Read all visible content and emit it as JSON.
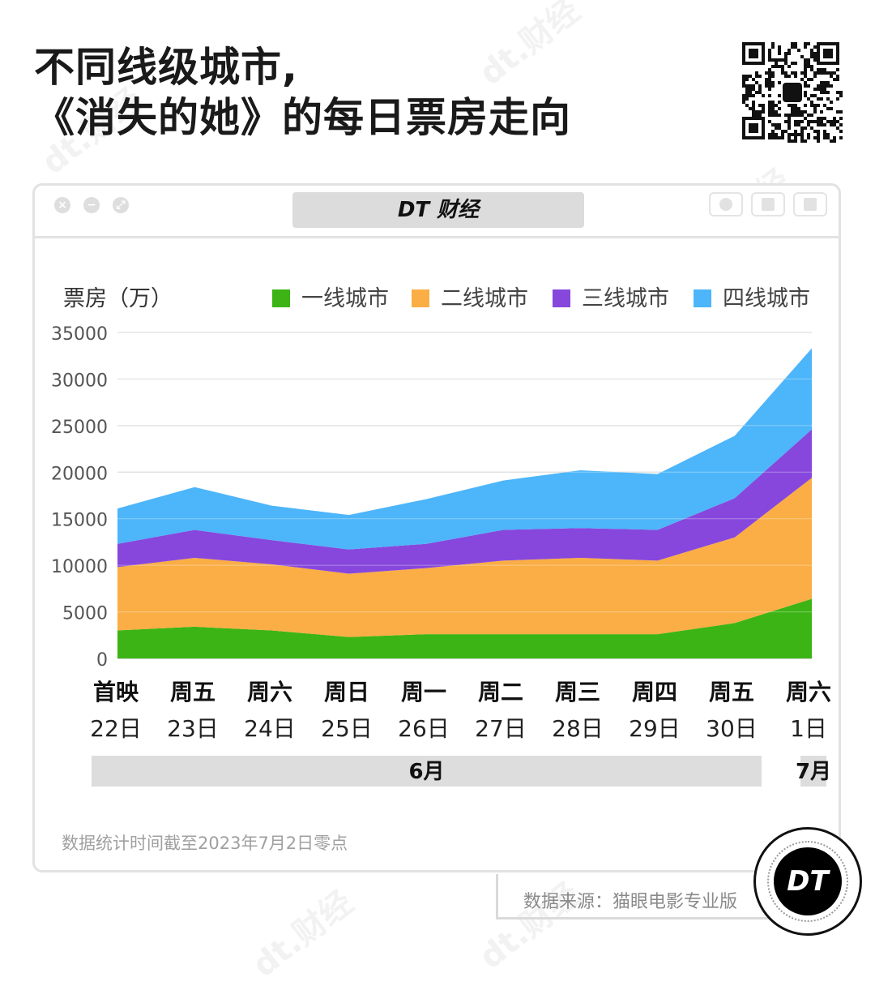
{
  "title": {
    "line1": "不同线级城市,",
    "line2": "《消失的她》的每日票房走向"
  },
  "window": {
    "brand": "DT 财经",
    "controls": [
      "close-icon",
      "minimize-icon",
      "zoom-icon"
    ],
    "toolbar_icons": [
      "record-icon",
      "share-icon",
      "copy-icon"
    ]
  },
  "chart_data": {
    "type": "area",
    "stacked": true,
    "ylabel": "票房（万）",
    "ylim": [
      0,
      35000
    ],
    "yticks": [
      "35000",
      "30000",
      "25000",
      "20000",
      "15000",
      "10000",
      "5000",
      "0"
    ],
    "grid": true,
    "legend_position": "top-right",
    "weekdays": [
      "首映",
      "周五",
      "周六",
      "周日",
      "周一",
      "周二",
      "周三",
      "周四",
      "周五",
      "周六"
    ],
    "dates": [
      "22日",
      "23日",
      "24日",
      "25日",
      "26日",
      "27日",
      "28日",
      "29日",
      "30日",
      "1日"
    ],
    "months": [
      {
        "label": "6月",
        "span": 9
      },
      {
        "label": "7月",
        "span": 1
      }
    ],
    "series": [
      {
        "name": "一线城市",
        "color": "#3cb415",
        "values": [
          3000,
          3400,
          3000,
          2300,
          2600,
          2600,
          2600,
          2600,
          3800,
          6400
        ]
      },
      {
        "name": "二线城市",
        "color": "#faae45",
        "values": [
          6800,
          7400,
          7100,
          6800,
          7100,
          7900,
          8200,
          7900,
          9200,
          13000
        ]
      },
      {
        "name": "三线城市",
        "color": "#8747dc",
        "values": [
          2500,
          3000,
          2600,
          2600,
          2600,
          3300,
          3200,
          3300,
          4200,
          5200
        ]
      },
      {
        "name": "四线城市",
        "color": "#4db5f9",
        "values": [
          3800,
          4600,
          3700,
          3700,
          4800,
          5300,
          6200,
          6000,
          6700,
          8700
        ]
      }
    ]
  },
  "footnote": "数据统计时间截至2023年7月2日零点",
  "source": "数据来源：猫眼电影专业版",
  "logo": "DT",
  "watermark": "dt.财经"
}
